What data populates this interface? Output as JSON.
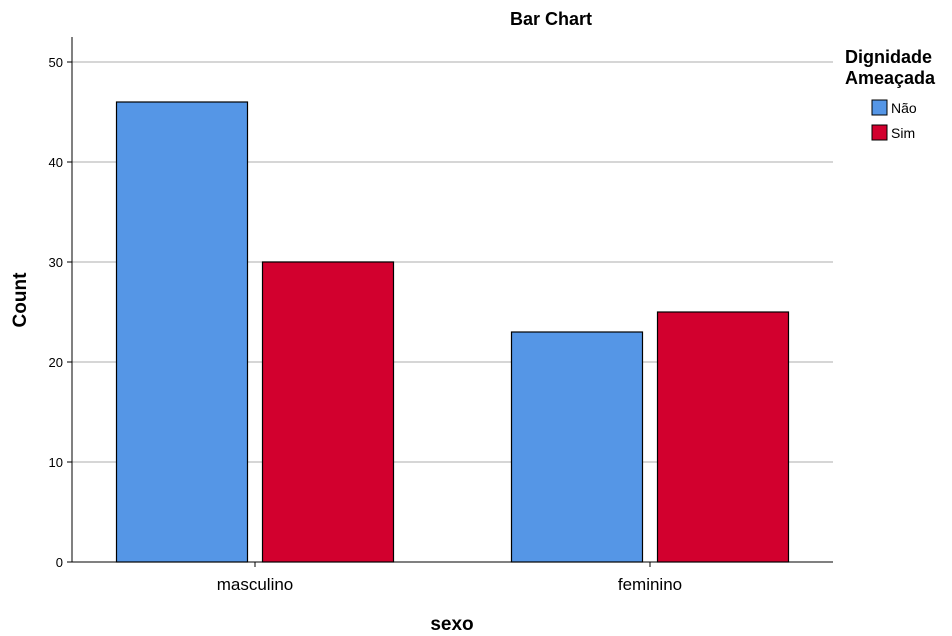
{
  "chart_data": {
    "type": "bar",
    "title": "Bar Chart",
    "xlabel": "sexo",
    "ylabel": "Count",
    "categories": [
      "masculino",
      "feminino"
    ],
    "series": [
      {
        "name": "Não",
        "values": [
          46,
          23
        ],
        "color": "#5596e6"
      },
      {
        "name": "Sim",
        "values": [
          30,
          25
        ],
        "color": "#d2002e"
      }
    ],
    "ylim": [
      0,
      52
    ],
    "yticks": [
      0,
      10,
      20,
      30,
      40,
      50
    ],
    "grid": true,
    "legend": {
      "title_line1": "Dignidade",
      "title_line2": "Ameaçada",
      "position": "top-right"
    }
  }
}
